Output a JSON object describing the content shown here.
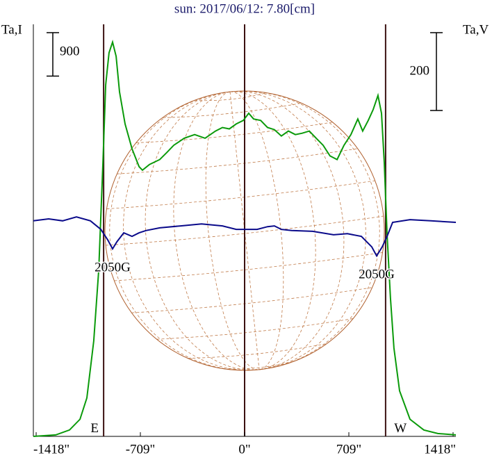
{
  "chart_data": {
    "type": "line",
    "title": "sun: 2017/06/12: 7.80[cm]",
    "y_label": "Ta,I",
    "y2_label": "Ta,V",
    "xlim": [
      -1437,
      1437
    ],
    "xticks": [
      {
        "value": -1418,
        "label": "-1418\""
      },
      {
        "value": -709,
        "label": "-709\""
      },
      {
        "value": 0,
        "label": "0\""
      },
      {
        "value": 709,
        "label": "709\""
      },
      {
        "value": 1418,
        "label": "1418\""
      }
    ],
    "ylim": [
      0,
      8540
    ],
    "y2lim": [
      -550,
      509
    ],
    "vlines": [
      -959,
      0,
      959
    ],
    "scale_bars": [
      {
        "value": 900,
        "axis": "y"
      },
      {
        "value": 200,
        "axis": "y2"
      }
    ],
    "annotations": [
      {
        "text": "2050G",
        "x": -898,
        "y": -68,
        "axis": "y2"
      },
      {
        "text": "2050G",
        "x": 898,
        "y": -86,
        "axis": "y2"
      },
      {
        "text": "E",
        "x": -1020,
        "y": 150,
        "axis": "y"
      },
      {
        "text": "W",
        "x": 1060,
        "y": 150,
        "axis": "y"
      }
    ],
    "series": [
      {
        "name": "I",
        "color": "#0a9a0a",
        "axis": "y",
        "x": [
          -1437,
          -1285,
          -1191,
          -1120,
          -1073,
          -1026,
          -992,
          -964,
          -945,
          -922,
          -898,
          -874,
          -851,
          -813,
          -766,
          -718,
          -695,
          -647,
          -577,
          -529,
          -482,
          -411,
          -340,
          -269,
          -198,
          -151,
          -104,
          -57,
          -9,
          28,
          61,
          109,
          156,
          203,
          250,
          298,
          345,
          392,
          440,
          487,
          534,
          581,
          629,
          676,
          723,
          770,
          803,
          841,
          874,
          907,
          931,
          950,
          969,
          992,
          1016,
          1054,
          1125,
          1219,
          1314,
          1437
        ],
        "values": [
          0,
          30,
          133,
          354,
          797,
          1977,
          3452,
          5664,
          7287,
          7950,
          8172,
          7877,
          7139,
          6475,
          5959,
          5590,
          5517,
          5635,
          5738,
          5885,
          6033,
          6180,
          6254,
          6180,
          6328,
          6402,
          6372,
          6475,
          6549,
          6697,
          6579,
          6549,
          6402,
          6357,
          6225,
          6328,
          6254,
          6284,
          6328,
          6180,
          6033,
          5812,
          5738,
          6033,
          6254,
          6579,
          6328,
          6549,
          6770,
          7065,
          6697,
          5664,
          4189,
          2862,
          1829,
          944,
          354,
          133,
          59,
          30
        ]
      },
      {
        "name": "V",
        "color": "#0a0a8a",
        "axis": "y2",
        "x": [
          -1437,
          -1333,
          -1238,
          -1144,
          -1049,
          -978,
          -931,
          -898,
          -869,
          -822,
          -766,
          -718,
          -671,
          -577,
          -435,
          -293,
          -151,
          -57,
          0,
          85,
          156,
          203,
          250,
          321,
          463,
          605,
          699,
          794,
          865,
          898,
          936,
          969,
          1007,
          1125,
          1267,
          1437
        ],
        "values": [
          4,
          9,
          4,
          14,
          4,
          -18,
          -45,
          -68,
          -50,
          -27,
          -36,
          -27,
          -21,
          -14,
          -9,
          -4,
          -9,
          -18,
          -18,
          -18,
          -11,
          -9,
          -18,
          -21,
          -23,
          -32,
          -29,
          -36,
          -63,
          -86,
          -63,
          -36,
          0,
          7,
          4,
          0
        ]
      }
    ]
  }
}
